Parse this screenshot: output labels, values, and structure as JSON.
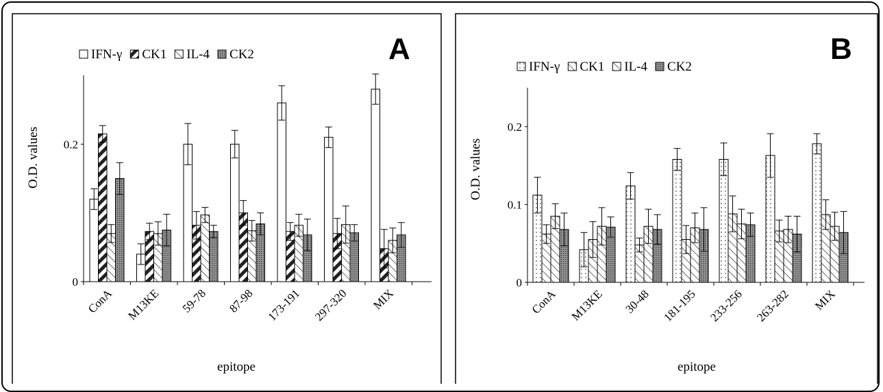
{
  "colors": {
    "frame": "#000000",
    "background": "#ffffff",
    "bar_outline": "#000000"
  },
  "series_styles": [
    {
      "name": "IFN-γ",
      "pattern": "open",
      "fill": "#ffffff"
    },
    {
      "name": "CK1",
      "pattern": "wide-diagonal-stripes",
      "fill": "#ffffff"
    },
    {
      "name": "IL-4",
      "pattern": "light-diagonal-stripes",
      "fill": "#ffffff"
    },
    {
      "name": "CK2",
      "pattern": "dense-dots",
      "fill": "#8c8c8c"
    }
  ],
  "series_styles_b": [
    {
      "name": "IFN-γ",
      "pattern": "sparse-dots",
      "fill": "#ffffff"
    },
    {
      "name": "CK1",
      "pattern": "light-diagonal-stripes",
      "fill": "#ffffff"
    },
    {
      "name": "IL-4",
      "pattern": "light-diagonal-stripes",
      "fill": "#ffffff"
    },
    {
      "name": "CK2",
      "pattern": "dense-dots",
      "fill": "#8c8c8c"
    }
  ],
  "chart_data": [
    {
      "panel": "A",
      "type": "bar",
      "xlabel": "epitope",
      "ylabel": "O.D. values",
      "ylim": [
        0,
        0.3
      ],
      "yticks": [
        "0",
        "0.2"
      ],
      "ytick_values": [
        0,
        0.2
      ],
      "legend_position": "top",
      "categories": [
        "ConA",
        "M13KE",
        "59-78",
        "87-98",
        "173-191",
        "297-320",
        "MIX"
      ],
      "series": [
        {
          "name": "IFN-γ",
          "values": [
            0.12,
            0.04,
            0.2,
            0.2,
            0.26,
            0.21,
            0.28
          ],
          "errors": [
            0.015,
            0.015,
            0.03,
            0.02,
            0.025,
            0.015,
            0.022
          ]
        },
        {
          "name": "CK1",
          "values": [
            0.215,
            0.073,
            0.082,
            0.1,
            0.073,
            0.07,
            0.048
          ],
          "errors": [
            0.012,
            0.012,
            0.02,
            0.018,
            0.013,
            0.022,
            0.028
          ]
        },
        {
          "name": "IL-4",
          "values": [
            0.07,
            0.07,
            0.097,
            0.074,
            0.082,
            0.083,
            0.06
          ],
          "errors": [
            0.013,
            0.017,
            0.011,
            0.015,
            0.016,
            0.027,
            0.018
          ]
        },
        {
          "name": "CK2",
          "values": [
            0.15,
            0.075,
            0.073,
            0.084,
            0.068,
            0.071,
            0.068
          ],
          "errors": [
            0.023,
            0.023,
            0.009,
            0.016,
            0.023,
            0.012,
            0.018
          ]
        }
      ]
    },
    {
      "panel": "B",
      "type": "bar",
      "xlabel": "epitope",
      "ylabel": "O.D. values",
      "ylim": [
        0,
        0.25
      ],
      "yticks": [
        "0",
        "0.1",
        "0.2"
      ],
      "ytick_values": [
        0,
        0.1,
        0.2
      ],
      "legend_position": "top",
      "categories": [
        "ConA",
        "M13KE",
        "30-48",
        "181-195",
        "233-256",
        "263-282",
        "MIX"
      ],
      "series": [
        {
          "name": "IFN-γ",
          "values": [
            0.112,
            0.042,
            0.124,
            0.158,
            0.158,
            0.163,
            0.178
          ],
          "errors": [
            0.023,
            0.022,
            0.017,
            0.014,
            0.021,
            0.028,
            0.013
          ]
        },
        {
          "name": "CK1",
          "values": [
            0.062,
            0.055,
            0.048,
            0.055,
            0.088,
            0.066,
            0.087
          ],
          "errors": [
            0.012,
            0.023,
            0.009,
            0.018,
            0.023,
            0.014,
            0.019
          ]
        },
        {
          "name": "IL-4",
          "values": [
            0.085,
            0.072,
            0.072,
            0.07,
            0.075,
            0.068,
            0.072
          ],
          "errors": [
            0.016,
            0.024,
            0.022,
            0.019,
            0.019,
            0.017,
            0.018
          ]
        },
        {
          "name": "CK2",
          "values": [
            0.068,
            0.071,
            0.068,
            0.068,
            0.074,
            0.062,
            0.064
          ],
          "errors": [
            0.021,
            0.013,
            0.019,
            0.028,
            0.015,
            0.023,
            0.027
          ]
        }
      ]
    }
  ]
}
